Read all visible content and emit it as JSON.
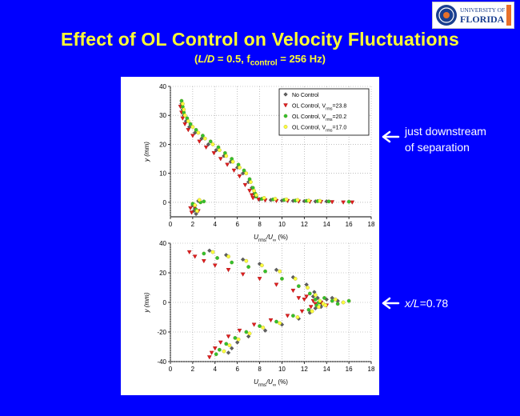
{
  "header": {
    "title": "Effect of OL Control on Velocity Fluctuations",
    "subtitle_parts": [
      "(",
      "L/D",
      " = 0.5, f",
      "control",
      " = 256 Hz)"
    ]
  },
  "logo": {
    "lines": [
      "UNIVERSITY OF",
      "FLORIDA"
    ],
    "colors": {
      "blue": "#1a3f8f",
      "orange": "#e8702a"
    }
  },
  "annotations": [
    {
      "lines": [
        "just downstream",
        "of separation"
      ]
    },
    {
      "parts": [
        "x/L",
        "=0.78"
      ]
    }
  ],
  "colors": {
    "background": "#0000ff",
    "title": "#ffff33",
    "no_control": "#606060",
    "ol_23_8": "#e02020",
    "ol_20_2": "#30c030",
    "ol_17_0": "#ffff40"
  },
  "chart_data": [
    {
      "type": "scatter",
      "xlabel_parts": [
        "U",
        "rms",
        "/U",
        "∞",
        " (%)"
      ],
      "ylabel": "y (mm)",
      "xlim": [
        0,
        18
      ],
      "ylim": [
        -5,
        40
      ],
      "xticks": [
        0,
        2,
        4,
        6,
        8,
        10,
        12,
        14,
        16,
        18
      ],
      "yticks": [
        0,
        10,
        20,
        30,
        40
      ],
      "grid": "dotted",
      "legend_position": "top-right",
      "legend_entries": [
        {
          "label": "No Control"
        },
        {
          "label_parts": [
            "OL Control, V",
            "rms",
            "=23.8"
          ]
        },
        {
          "label_parts": [
            "OL Control, V",
            "rms",
            "=20.2"
          ]
        },
        {
          "label_parts": [
            "OL Control, V",
            "rms",
            "=17.0"
          ]
        }
      ],
      "series": [
        {
          "marker": "diamond",
          "color": "#606060",
          "points": [
            [
              1.0,
              34
            ],
            [
              1.1,
              32
            ],
            [
              1.2,
              30
            ],
            [
              1.4,
              28
            ],
            [
              1.7,
              26
            ],
            [
              2.2,
              24
            ],
            [
              2.8,
              22
            ],
            [
              3.4,
              20
            ],
            [
              4.1,
              18
            ],
            [
              4.8,
              16
            ],
            [
              5.4,
              14
            ],
            [
              6.0,
              12
            ],
            [
              6.5,
              10
            ],
            [
              7.0,
              7
            ],
            [
              7.3,
              5
            ],
            [
              7.5,
              3
            ],
            [
              7.6,
              2
            ],
            [
              8.0,
              1
            ],
            [
              9.0,
              0.8
            ],
            [
              10.0,
              0.6
            ],
            [
              11.0,
              0.5
            ],
            [
              12.0,
              0.4
            ],
            [
              13.0,
              0.3
            ],
            [
              14.0,
              0.3
            ],
            [
              2.0,
              -1
            ],
            [
              2.2,
              -2
            ],
            [
              2.1,
              -3
            ],
            [
              2.3,
              -4
            ],
            [
              2.5,
              0.5
            ]
          ]
        },
        {
          "marker": "triangle-down",
          "color": "#e02020",
          "points": [
            [
              0.9,
              33
            ],
            [
              1.0,
              31
            ],
            [
              1.1,
              29
            ],
            [
              1.3,
              27
            ],
            [
              1.6,
              25
            ],
            [
              2.0,
              23
            ],
            [
              2.6,
              21
            ],
            [
              3.2,
              19
            ],
            [
              3.9,
              17
            ],
            [
              4.5,
              15
            ],
            [
              5.1,
              13
            ],
            [
              5.7,
              11
            ],
            [
              6.2,
              9
            ],
            [
              6.7,
              6
            ],
            [
              7.1,
              4
            ],
            [
              7.3,
              2.5
            ],
            [
              7.4,
              1.5
            ],
            [
              7.9,
              1
            ],
            [
              8.5,
              0.7
            ],
            [
              9.5,
              0.5
            ],
            [
              10.5,
              0.5
            ],
            [
              11.5,
              0.3
            ],
            [
              12.5,
              0.2
            ],
            [
              13.5,
              0.2
            ],
            [
              14.5,
              0.1
            ],
            [
              15.5,
              0
            ],
            [
              16.3,
              0
            ],
            [
              1.8,
              -2
            ],
            [
              1.9,
              -3.5
            ],
            [
              2.2,
              -1.5
            ],
            [
              2.5,
              -3
            ]
          ]
        },
        {
          "marker": "circle",
          "color": "#30c030",
          "points": [
            [
              1.0,
              35
            ],
            [
              1.1,
              33
            ],
            [
              1.2,
              31
            ],
            [
              1.5,
              29
            ],
            [
              1.8,
              27
            ],
            [
              2.3,
              25
            ],
            [
              2.9,
              23
            ],
            [
              3.6,
              21
            ],
            [
              4.3,
              19
            ],
            [
              4.9,
              17
            ],
            [
              5.5,
              15
            ],
            [
              6.1,
              13
            ],
            [
              6.6,
              11
            ],
            [
              7.1,
              8
            ],
            [
              7.4,
              5
            ],
            [
              7.6,
              3
            ],
            [
              7.7,
              2
            ],
            [
              8.2,
              1.2
            ],
            [
              9.2,
              1
            ],
            [
              10.2,
              0.8
            ],
            [
              11.2,
              0.6
            ],
            [
              12.2,
              0.5
            ],
            [
              13.2,
              0.4
            ],
            [
              14.2,
              0.3
            ],
            [
              16.0,
              0.2
            ],
            [
              2.0,
              -0.5
            ],
            [
              2.3,
              -2.5
            ],
            [
              2.7,
              0
            ],
            [
              3.0,
              0.3
            ]
          ]
        },
        {
          "marker": "circle",
          "color": "#ffff40",
          "points": [
            [
              1.1,
              34
            ],
            [
              1.2,
              32
            ],
            [
              1.3,
              30
            ],
            [
              1.6,
              28
            ],
            [
              2.0,
              26
            ],
            [
              2.5,
              24
            ],
            [
              3.1,
              22
            ],
            [
              3.8,
              20
            ],
            [
              4.4,
              18
            ],
            [
              5.0,
              16
            ],
            [
              5.6,
              14
            ],
            [
              6.2,
              12
            ],
            [
              6.8,
              10
            ],
            [
              7.2,
              7
            ],
            [
              7.5,
              4
            ],
            [
              7.7,
              2.5
            ],
            [
              8.4,
              1.5
            ],
            [
              9.4,
              1.2
            ],
            [
              10.4,
              1
            ],
            [
              11.4,
              0.8
            ],
            [
              12.4,
              0.6
            ],
            [
              13.4,
              0.5
            ],
            [
              2.2,
              -1
            ],
            [
              2.4,
              -3
            ],
            [
              2.6,
              0.8
            ]
          ]
        }
      ]
    },
    {
      "type": "scatter",
      "xlabel_parts": [
        "U",
        "rms",
        "/U",
        "∞",
        " (%)"
      ],
      "ylabel": "y (mm)",
      "xlim": [
        0,
        18
      ],
      "ylim": [
        -40,
        40
      ],
      "xticks": [
        0,
        2,
        4,
        6,
        8,
        10,
        12,
        14,
        16,
        18
      ],
      "yticks": [
        -40,
        -20,
        0,
        20,
        40
      ],
      "grid": "dotted",
      "series": [
        {
          "marker": "diamond",
          "color": "#606060",
          "points": [
            [
              3.5,
              35
            ],
            [
              5.0,
              32
            ],
            [
              6.5,
              29
            ],
            [
              8.0,
              26
            ],
            [
              9.5,
              22
            ],
            [
              11.0,
              17
            ],
            [
              12.2,
              12
            ],
            [
              12.9,
              7
            ],
            [
              13.2,
              3
            ],
            [
              13.4,
              0
            ],
            [
              13.6,
              -1
            ],
            [
              14.0,
              2
            ],
            [
              15.0,
              1
            ],
            [
              13.0,
              -4
            ],
            [
              12.5,
              -7
            ],
            [
              11.5,
              -11
            ],
            [
              10.0,
              -15
            ],
            [
              8.5,
              -19
            ],
            [
              7.0,
              -23
            ],
            [
              6.0,
              -27
            ],
            [
              5.5,
              -31
            ],
            [
              5.2,
              -34
            ],
            [
              12.8,
              4
            ],
            [
              13.5,
              -3
            ],
            [
              14.5,
              3
            ]
          ]
        },
        {
          "marker": "triangle-down",
          "color": "#e02020",
          "points": [
            [
              1.7,
              34
            ],
            [
              2.2,
              31
            ],
            [
              3.0,
              28
            ],
            [
              4.0,
              25
            ],
            [
              5.2,
              22
            ],
            [
              6.5,
              19
            ],
            [
              8.0,
              16
            ],
            [
              9.5,
              12
            ],
            [
              11.0,
              8
            ],
            [
              12.2,
              4
            ],
            [
              12.8,
              1
            ],
            [
              13.0,
              -1
            ],
            [
              12.6,
              -3
            ],
            [
              11.8,
              -6
            ],
            [
              10.5,
              -9
            ],
            [
              9.0,
              -12
            ],
            [
              7.5,
              -15
            ],
            [
              6.2,
              -19
            ],
            [
              5.2,
              -23
            ],
            [
              4.5,
              -27
            ],
            [
              4.0,
              -31
            ],
            [
              3.7,
              -34
            ],
            [
              3.5,
              -37
            ],
            [
              12.0,
              2
            ],
            [
              13.5,
              0
            ],
            [
              14.0,
              -2
            ],
            [
              11.5,
              3
            ]
          ]
        },
        {
          "marker": "circle",
          "color": "#30c030",
          "points": [
            [
              3.0,
              33
            ],
            [
              4.2,
              30
            ],
            [
              5.5,
              27
            ],
            [
              7.0,
              24
            ],
            [
              8.5,
              21
            ],
            [
              10.0,
              16
            ],
            [
              11.5,
              11
            ],
            [
              12.5,
              6
            ],
            [
              13.0,
              2
            ],
            [
              13.3,
              0
            ],
            [
              13.1,
              -2
            ],
            [
              12.4,
              -5
            ],
            [
              11.0,
              -9
            ],
            [
              9.5,
              -13
            ],
            [
              8.0,
              -16
            ],
            [
              6.8,
              -20
            ],
            [
              5.8,
              -24
            ],
            [
              5.0,
              -28
            ],
            [
              4.4,
              -32
            ],
            [
              4.1,
              -35
            ],
            [
              14.5,
              1
            ],
            [
              15.0,
              -1
            ],
            [
              16.0,
              1
            ],
            [
              13.8,
              3
            ]
          ]
        },
        {
          "marker": "circle",
          "color": "#ffff40",
          "points": [
            [
              3.8,
              34
            ],
            [
              5.2,
              31
            ],
            [
              6.8,
              28
            ],
            [
              8.2,
              25
            ],
            [
              9.8,
              21
            ],
            [
              11.2,
              16
            ],
            [
              12.3,
              10
            ],
            [
              13.0,
              5
            ],
            [
              13.4,
              1
            ],
            [
              13.7,
              -1
            ],
            [
              13.3,
              -3
            ],
            [
              12.7,
              -6
            ],
            [
              11.4,
              -10
            ],
            [
              9.8,
              -14
            ],
            [
              8.3,
              -17
            ],
            [
              7.1,
              -21
            ],
            [
              6.1,
              -25
            ],
            [
              5.3,
              -29
            ],
            [
              4.8,
              -33
            ],
            [
              14.8,
              2
            ],
            [
              15.5,
              0
            ],
            [
              13.9,
              -2
            ]
          ]
        }
      ]
    }
  ]
}
